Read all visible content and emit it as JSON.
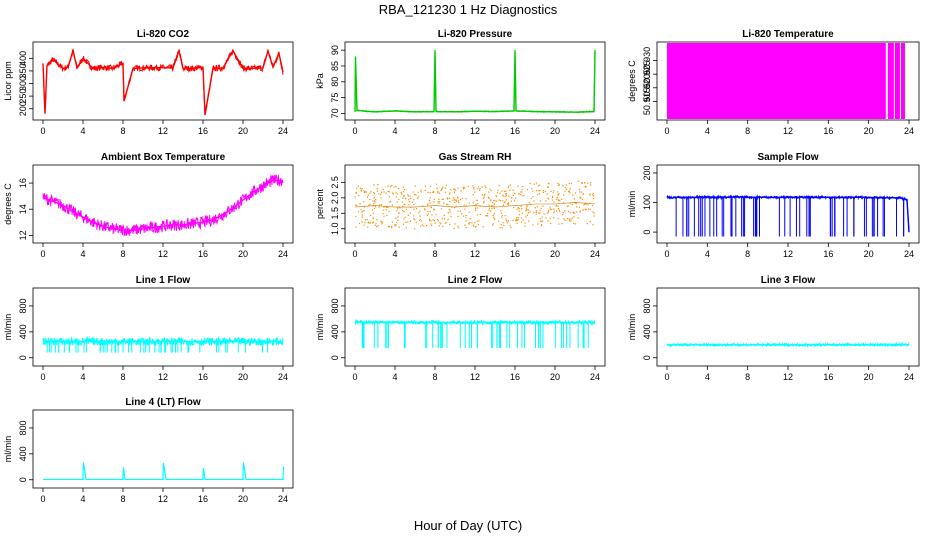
{
  "figure": {
    "title": "RBA_121230  1 Hz Diagnostics",
    "xlabel": "Hour of Day (UTC)"
  },
  "chart_data": [
    {
      "type": "line",
      "title": "Li-820 CO2",
      "ylabel": "Licor ppm",
      "xlim": [
        0,
        24
      ],
      "ylim": [
        175,
        445
      ],
      "yticks": [
        "200",
        "250",
        "300",
        "350",
        "400"
      ],
      "xticks": [
        "0",
        "4",
        "8",
        "12",
        "16",
        "20",
        "24"
      ],
      "color": "#ff0000",
      "series": [
        {
          "x": [
            0,
            0.2,
            0.4,
            1,
            2,
            2.5,
            3,
            3.4,
            4,
            5,
            6,
            7,
            8,
            8.1,
            9,
            10,
            11,
            12,
            13,
            13.6,
            14,
            15,
            16,
            16.2,
            17,
            18,
            19,
            20,
            21,
            22,
            22.5,
            23,
            23.6,
            24
          ],
          "y": [
            380,
            180,
            372,
            395,
            360,
            365,
            430,
            362,
            400,
            360,
            364,
            360,
            380,
            230,
            360,
            362,
            363,
            363,
            362,
            430,
            360,
            360,
            365,
            175,
            360,
            362,
            430,
            360,
            360,
            362,
            430,
            365,
            420,
            345
          ]
        }
      ]
    },
    {
      "type": "line",
      "title": "Li-820 Pressure",
      "ylabel": "kPa",
      "xlim": [
        0,
        24
      ],
      "ylim": [
        69.5,
        91
      ],
      "yticks": [
        "70",
        "75",
        "80",
        "85",
        "90"
      ],
      "xticks": [
        "0",
        "4",
        "8",
        "12",
        "16",
        "20",
        "24"
      ],
      "color": "#00cc00",
      "series": [
        {
          "x": [
            0,
            0.05,
            0.2,
            1,
            2,
            4,
            6,
            7.9,
            8,
            8.1,
            10,
            12,
            14,
            15.9,
            16,
            16.1,
            18,
            20,
            22,
            23.9,
            24
          ],
          "y": [
            70.5,
            88,
            71,
            70.7,
            70.5,
            70.8,
            70.5,
            70.6,
            90,
            70.6,
            70.5,
            70.7,
            70.6,
            70.8,
            90,
            70.8,
            70.6,
            70.5,
            70.4,
            70.6,
            90
          ]
        }
      ]
    },
    {
      "type": "area",
      "title": "Li-820 Temperature",
      "ylabel": "degrees C",
      "xlim": [
        0,
        24
      ],
      "ylim": [
        50.91,
        50.935
      ],
      "yticks": [
        "50.915",
        "50.920",
        "50.925",
        "50.930"
      ],
      "xticks": [
        "0",
        "4",
        "8",
        "12",
        "16",
        "20",
        "24"
      ],
      "color": "#ff00ff",
      "series": [
        {
          "x": [
            0,
            21.7,
            21.9,
            22.5,
            22.6,
            23.1,
            23.2,
            23.6
          ],
          "y": [
            50.935,
            50.935,
            50.935,
            50.935,
            50.935,
            50.935,
            50.935,
            50.935
          ]
        }
      ]
    },
    {
      "type": "line",
      "title": "Ambient Box Temperature",
      "ylabel": "degrees C",
      "xlim": [
        0,
        24
      ],
      "ylim": [
        11.8,
        17
      ],
      "yticks": [
        "12",
        "14",
        "16"
      ],
      "xticks": [
        "0",
        "4",
        "8",
        "12",
        "16",
        "20",
        "24"
      ],
      "color": "#ff00ff",
      "series": [
        {
          "x": [
            0,
            1,
            2,
            3,
            4,
            5,
            6,
            7,
            8,
            9,
            10,
            11,
            12,
            13,
            14,
            15,
            16,
            17,
            18,
            19,
            20,
            21,
            22,
            23,
            24
          ],
          "y": [
            14.9,
            14.6,
            14.3,
            13.8,
            13.4,
            13.0,
            12.7,
            12.5,
            12.4,
            12.4,
            12.5,
            12.6,
            12.7,
            12.8,
            12.8,
            12.9,
            13.0,
            13.2,
            13.6,
            14.1,
            14.7,
            15.3,
            15.8,
            16.2,
            16.2
          ]
        }
      ]
    },
    {
      "type": "scatter",
      "title": "Gas Stream RH",
      "ylabel": "percent",
      "xlim": [
        0,
        24
      ],
      "ylim": [
        0.7,
        2.9
      ],
      "yticks": [
        "1.0",
        "1.5",
        "2.0",
        "2.5"
      ],
      "xticks": [
        "0",
        "4",
        "8",
        "12",
        "16",
        "20",
        "24"
      ],
      "color": "#ff8c00",
      "series": [
        {
          "x": [
            0,
            2,
            4,
            6,
            8,
            10,
            12,
            14,
            16,
            18,
            20,
            22,
            24
          ],
          "y": [
            1.7,
            1.75,
            1.7,
            1.7,
            1.75,
            1.7,
            1.75,
            1.7,
            1.75,
            1.8,
            1.8,
            1.85,
            1.8
          ]
        }
      ]
    },
    {
      "type": "line",
      "title": "Sample Flow",
      "ylabel": "ml/min",
      "xlim": [
        0,
        24
      ],
      "ylim": [
        -20,
        210
      ],
      "yticks": [
        "0",
        "100",
        "200"
      ],
      "xticks": [
        "0",
        "4",
        "8",
        "12",
        "16",
        "20",
        "24"
      ],
      "color": "#0000ff",
      "series": [
        {
          "x": [
            0,
            0.5,
            1,
            2,
            3,
            4,
            5,
            6,
            7,
            8,
            9,
            10,
            11,
            12,
            13,
            14,
            15,
            16,
            17,
            18,
            19,
            20,
            21,
            22,
            23,
            23.8,
            24
          ],
          "y": [
            120,
            115,
            118,
            117,
            118,
            119,
            118,
            118,
            119,
            118,
            118,
            118,
            117,
            119,
            118,
            118,
            117,
            118,
            117,
            117,
            118,
            117,
            116,
            116,
            116,
            110,
            0
          ]
        }
      ]
    },
    {
      "type": "line",
      "title": "Line 1 Flow",
      "ylabel": "ml/min",
      "xlim": [
        0,
        24
      ],
      "ylim": [
        -50,
        1000
      ],
      "yticks": [
        "0",
        "400",
        "800"
      ],
      "xticks": [
        "0",
        "4",
        "8",
        "12",
        "16",
        "20",
        "24"
      ],
      "color": "#00ffff",
      "series": [
        {
          "x": [
            0,
            4,
            8,
            12,
            16,
            20,
            24
          ],
          "y": [
            250,
            250,
            250,
            250,
            250,
            250,
            250
          ]
        }
      ]
    },
    {
      "type": "line",
      "title": "Line 2 Flow",
      "ylabel": "ml/min",
      "xlim": [
        0,
        24
      ],
      "ylim": [
        -50,
        1000
      ],
      "yticks": [
        "0",
        "400",
        "800"
      ],
      "xticks": [
        "0",
        "4",
        "8",
        "12",
        "16",
        "20",
        "24"
      ],
      "color": "#00ffff",
      "series": [
        {
          "x": [
            0,
            4,
            8,
            12,
            16,
            20,
            24
          ],
          "y": [
            550,
            545,
            545,
            545,
            545,
            545,
            545
          ]
        }
      ]
    },
    {
      "type": "line",
      "title": "Line 3 Flow",
      "ylabel": "ml/min",
      "xlim": [
        0,
        24
      ],
      "ylim": [
        -50,
        1000
      ],
      "yticks": [
        "0",
        "400",
        "800"
      ],
      "xticks": [
        "0",
        "4",
        "8",
        "12",
        "16",
        "20",
        "24"
      ],
      "color": "#00ffff",
      "series": [
        {
          "x": [
            0,
            4,
            8,
            12,
            16,
            20,
            24
          ],
          "y": [
            200,
            200,
            200,
            200,
            200,
            200,
            200
          ]
        }
      ]
    },
    {
      "type": "line",
      "title": "Line 4 (LT) Flow",
      "ylabel": "ml/min",
      "xlim": [
        0,
        24
      ],
      "ylim": [
        -50,
        1000
      ],
      "yticks": [
        "0",
        "400",
        "800"
      ],
      "xticks": [
        "0",
        "4",
        "8",
        "12",
        "16",
        "20",
        "24"
      ],
      "color": "#00ffff",
      "series": [
        {
          "x": [
            0,
            4,
            4.05,
            4.3,
            8,
            8.05,
            8.2,
            12,
            12.05,
            12.3,
            16,
            16.05,
            16.2,
            20,
            20.05,
            20.3,
            24,
            24.05
          ],
          "y": [
            5,
            5,
            270,
            5,
            5,
            190,
            5,
            5,
            260,
            5,
            5,
            180,
            5,
            5,
            270,
            5,
            5,
            200
          ]
        }
      ]
    }
  ]
}
